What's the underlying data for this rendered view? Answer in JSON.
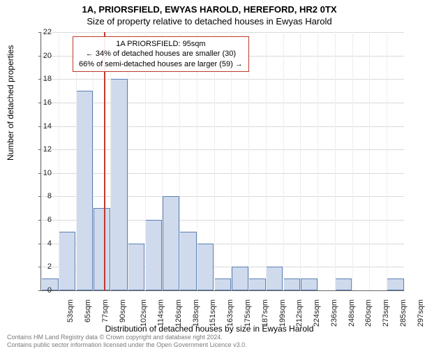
{
  "chart": {
    "type": "histogram",
    "main_title": "1A, PRIORSFIELD, EWYAS HAROLD, HEREFORD, HR2 0TX",
    "sub_title": "Size of property relative to detached houses in Ewyas Harold",
    "y_axis_label": "Number of detached properties",
    "x_axis_label": "Distribution of detached houses by size in Ewyas Harold",
    "ylim_max": 22,
    "y_ticks": [
      0,
      2,
      4,
      6,
      8,
      10,
      12,
      14,
      16,
      18,
      20,
      22
    ],
    "x_categories": [
      "53sqm",
      "65sqm",
      "77sqm",
      "90sqm",
      "102sqm",
      "114sqm",
      "126sqm",
      "138sqm",
      "151sqm",
      "163sqm",
      "175sqm",
      "187sqm",
      "199sqm",
      "212sqm",
      "224sqm",
      "236sqm",
      "248sqm",
      "260sqm",
      "273sqm",
      "285sqm",
      "297sqm"
    ],
    "bar_values": [
      1,
      5,
      17,
      7,
      18,
      4,
      6,
      8,
      5,
      4,
      1,
      2,
      1,
      2,
      1,
      1,
      0,
      1,
      0,
      0,
      1
    ],
    "bar_fill_color": "#cfdaed",
    "bar_border_color": "#5b7fb3",
    "grid_color": "#d9d9d9",
    "marker_value_sqm": 95,
    "marker_color": "#c0392b",
    "callout": {
      "line1": "1A PRIORSFIELD: 95sqm",
      "line2": "← 34% of detached houses are smaller (30)",
      "line3": "66% of semi-detached houses are larger (59) →"
    },
    "footer_line1": "Contains HM Land Registry data © Crown copyright and database right 2024.",
    "footer_line2": "Contains public sector information licensed under the Open Government Licence v3.0."
  }
}
